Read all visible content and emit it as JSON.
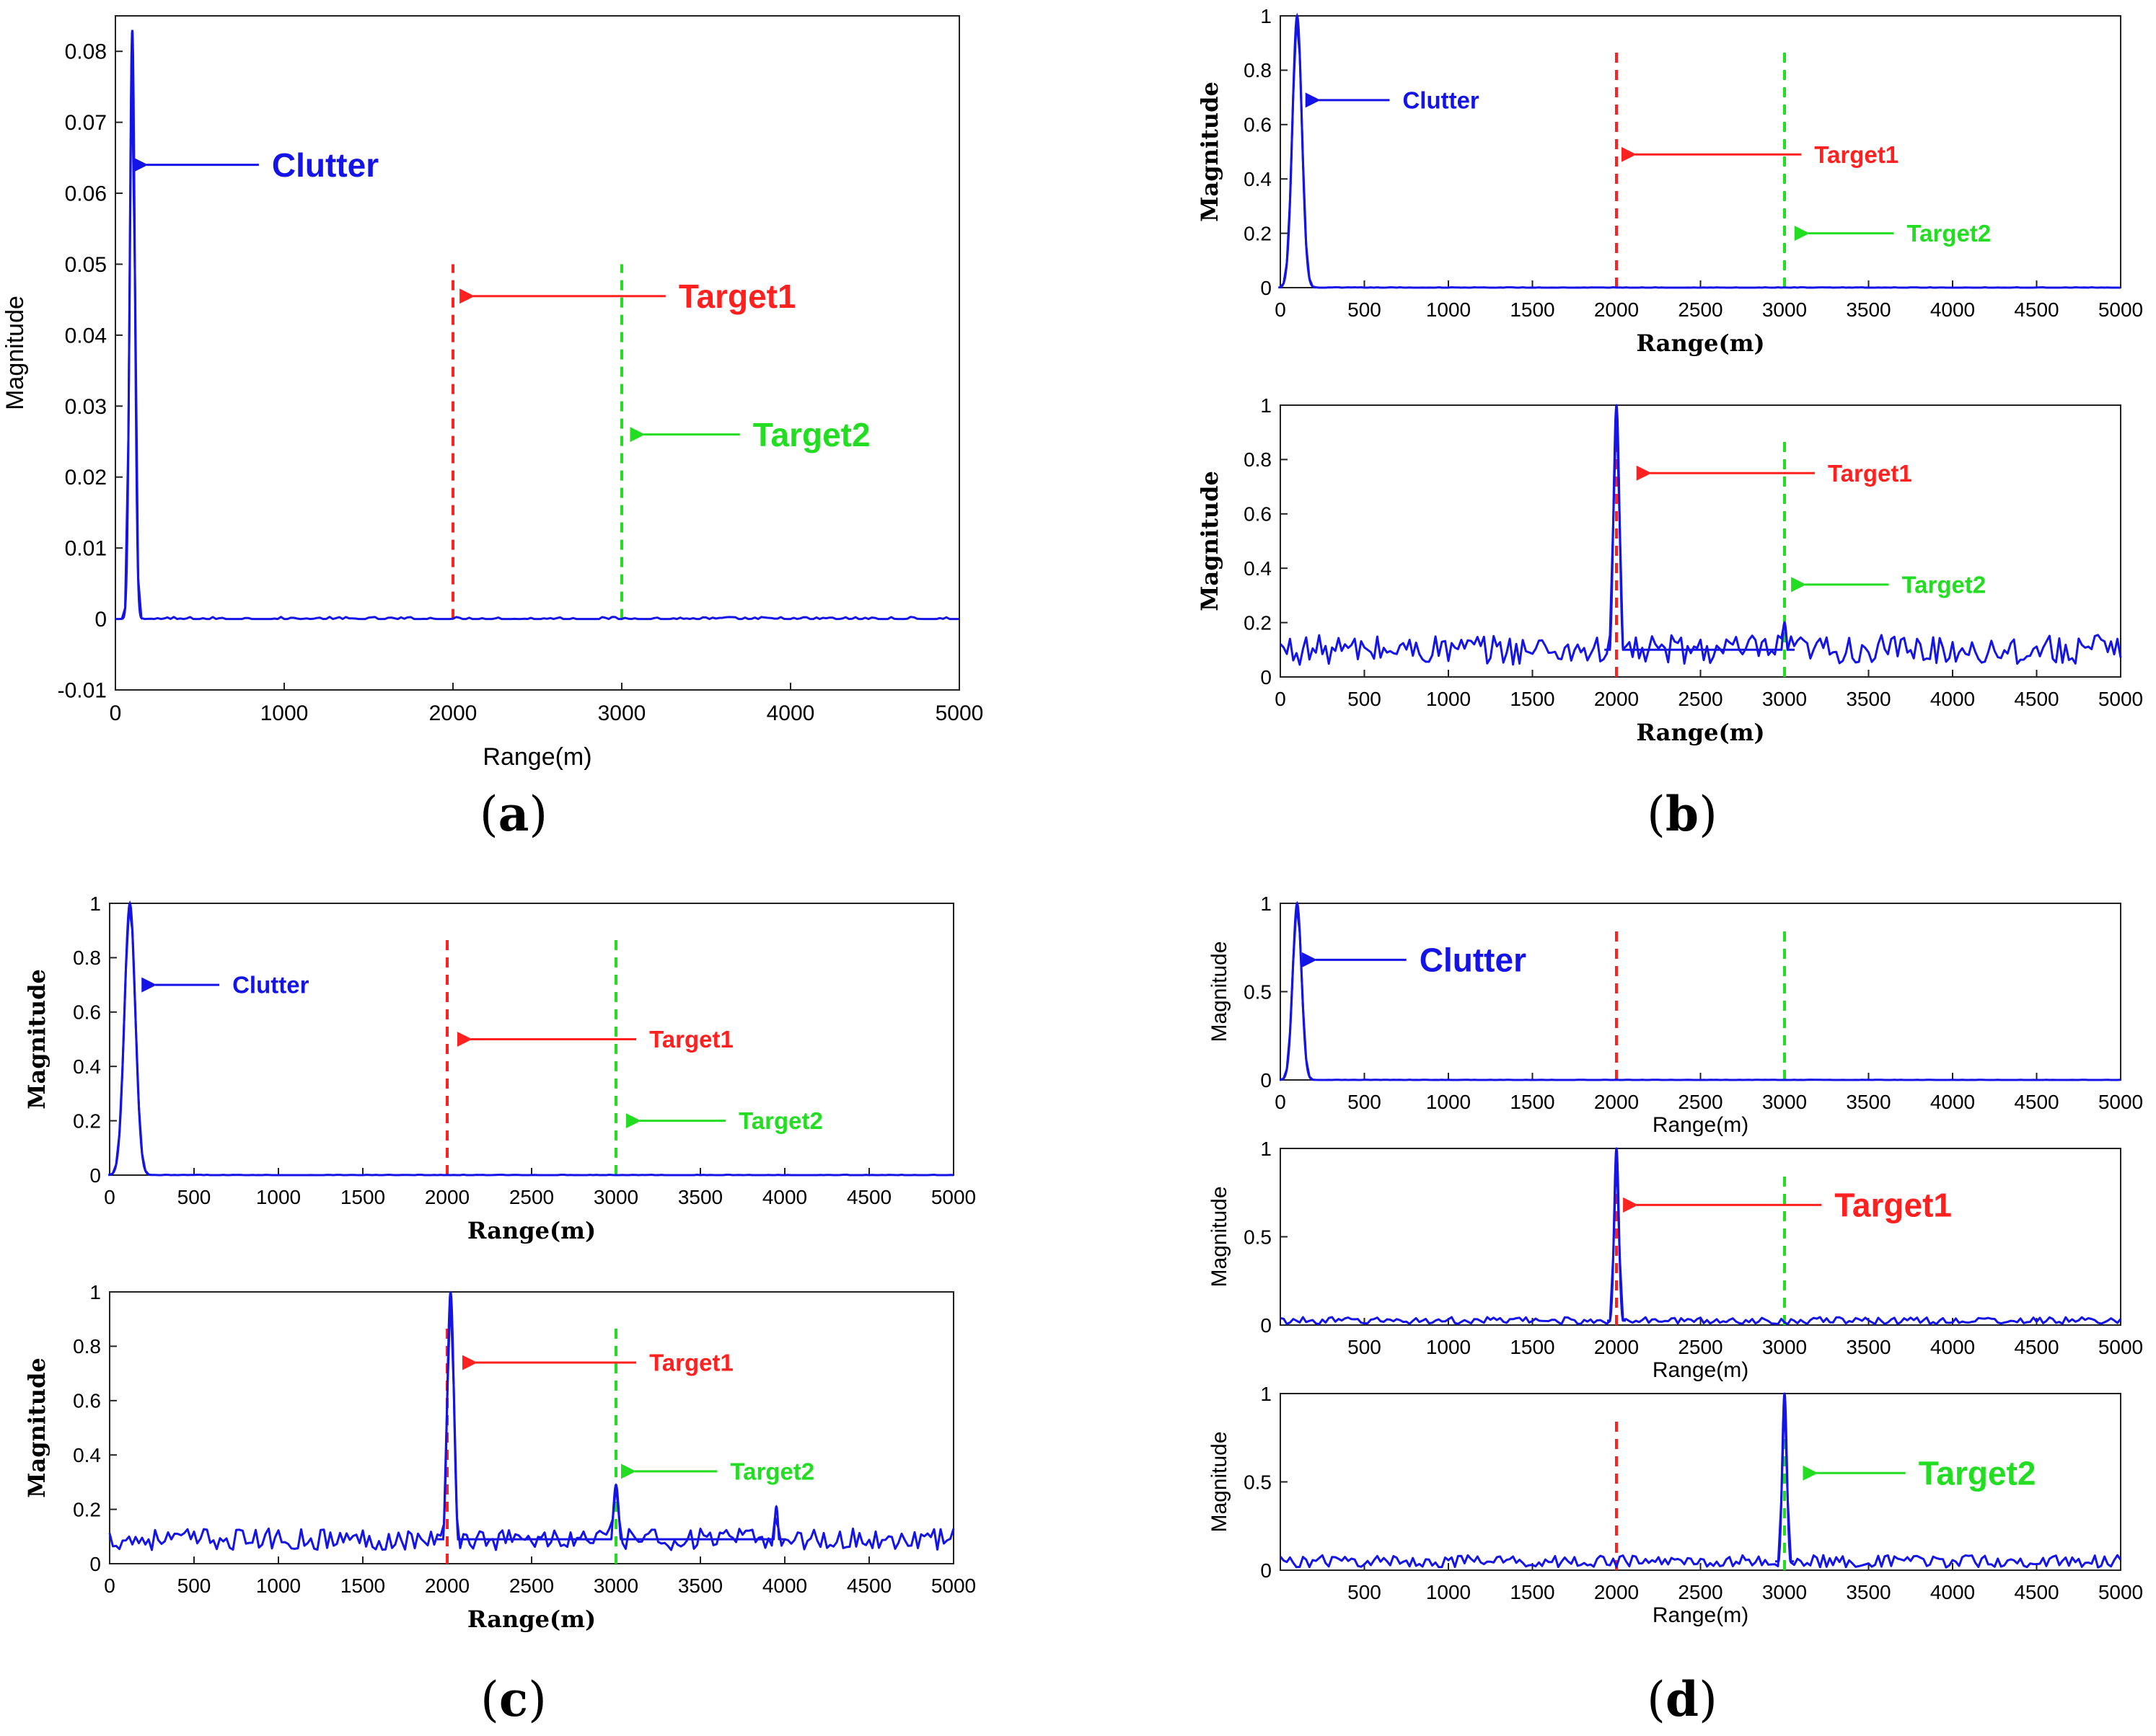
{
  "colors": {
    "signal": "#1414e6",
    "target1": "#ff2020",
    "target2": "#22dd22",
    "axis": "#222222"
  },
  "panel_labels": [
    "a",
    "b",
    "c",
    "d"
  ],
  "chart_data": [
    {
      "id": "a1",
      "panel": "a",
      "type": "line",
      "xlabel": "Range(m)",
      "ylabel": "Magnitude",
      "xlim": [
        0,
        5000
      ],
      "ylim": [
        -0.01,
        0.085
      ],
      "xticks": [
        0,
        1000,
        2000,
        3000,
        4000,
        5000
      ],
      "yticks": [
        -0.01,
        0,
        0.01,
        0.02,
        0.03,
        0.04,
        0.05,
        0.06,
        0.07,
        0.08
      ],
      "ytick_labels": [
        "-0.01",
        "0",
        "0.01",
        "0.02",
        "0.03",
        "0.04",
        "0.05",
        "0.06",
        "0.07",
        "0.08"
      ],
      "series": [
        {
          "name": "Clutter response",
          "peaks": [
            {
              "x": 100,
              "h": 0.083,
              "w": 15
            }
          ],
          "noise": 0.0006,
          "zero_below": 60
        }
      ],
      "vlines": [
        {
          "x": 2000,
          "y_top": 0.05,
          "color": "target1"
        },
        {
          "x": 3000,
          "y_top": 0.05,
          "color": "target2"
        }
      ],
      "annotations": [
        {
          "text": "Clutter",
          "color": "signal",
          "x": 125,
          "y": 0.064,
          "x_tail": 850
        },
        {
          "text": "Target1",
          "color": "target1",
          "x": 2060,
          "y": 0.0455,
          "x_tail": 3260
        },
        {
          "text": "Target2",
          "color": "target2",
          "x": 3070,
          "y": 0.026,
          "x_tail": 3700
        }
      ]
    },
    {
      "id": "b1",
      "panel": "b",
      "type": "line",
      "xlabel": "Range(m)",
      "ylabel": "Magnitude",
      "xlim": [
        0,
        5000
      ],
      "ylim": [
        0,
        1
      ],
      "xticks": [
        0,
        500,
        1000,
        1500,
        2000,
        2500,
        3000,
        3500,
        4000,
        4500,
        5000
      ],
      "yticks": [
        0,
        0.2,
        0.4,
        0.6,
        0.8,
        1
      ],
      "ytick_labels": [
        "0",
        "0.2",
        "0.4",
        "0.6",
        "0.8",
        "1"
      ],
      "series": [
        {
          "name": "Clutter response",
          "peaks": [
            {
              "x": 100,
              "h": 1.0,
              "w": 28
            }
          ],
          "noise": 0.003,
          "zero_below": 40
        }
      ],
      "vlines": [
        {
          "x": 2000,
          "y_top": 0.88,
          "color": "target1"
        },
        {
          "x": 3000,
          "y_top": 0.88,
          "color": "target2"
        }
      ],
      "annotations": [
        {
          "text": "Clutter",
          "color": "signal",
          "x": 170,
          "y": 0.69,
          "x_tail": 650
        },
        {
          "text": "Target1",
          "color": "target1",
          "x": 2050,
          "y": 0.49,
          "x_tail": 3100
        },
        {
          "text": "Target2",
          "color": "target2",
          "x": 3080,
          "y": 0.2,
          "x_tail": 3650
        }
      ]
    },
    {
      "id": "b2",
      "panel": "b",
      "type": "line",
      "xlabel": "Range(m)",
      "ylabel": "Magnitude",
      "xlim": [
        0,
        5000
      ],
      "ylim": [
        0,
        1
      ],
      "xticks": [
        0,
        500,
        1000,
        1500,
        2000,
        2500,
        3000,
        3500,
        4000,
        4500,
        5000
      ],
      "yticks": [
        0,
        0.2,
        0.4,
        0.6,
        0.8,
        1
      ],
      "ytick_labels": [
        "0",
        "0.2",
        "0.4",
        "0.6",
        "0.8",
        "1"
      ],
      "series": [
        {
          "name": "Target1 response",
          "peaks": [
            {
              "x": 2000,
              "h": 1.0,
              "w": 18
            },
            {
              "x": 3000,
              "h": 0.2,
              "w": 15
            }
          ],
          "noise": 0.1,
          "noise_amp": 0.055
        }
      ],
      "vlines": [
        {
          "x": 2000,
          "y_top": 0.88,
          "color": "target1"
        },
        {
          "x": 3000,
          "y_top": 0.88,
          "color": "target2"
        }
      ],
      "annotations": [
        {
          "text": "Target1",
          "color": "target1",
          "x": 2140,
          "y": 0.75,
          "x_tail": 3180
        },
        {
          "text": "Target2",
          "color": "target2",
          "x": 3060,
          "y": 0.34,
          "x_tail": 3620
        }
      ]
    },
    {
      "id": "c1",
      "panel": "c",
      "type": "line",
      "xlabel": "Range(m)",
      "ylabel": "Magnitude",
      "xlim": [
        0,
        5000
      ],
      "ylim": [
        0,
        1
      ],
      "xticks": [
        0,
        500,
        1000,
        1500,
        2000,
        2500,
        3000,
        3500,
        4000,
        4500,
        5000
      ],
      "yticks": [
        0,
        0.2,
        0.4,
        0.6,
        0.8,
        1
      ],
      "ytick_labels": [
        "0",
        "0.2",
        "0.4",
        "0.6",
        "0.8",
        "1"
      ],
      "series": [
        {
          "name": "Clutter response",
          "peaks": [
            {
              "x": 120,
              "h": 1.0,
              "w": 32
            }
          ],
          "noise": 0.003,
          "zero_below": 50
        }
      ],
      "vlines": [
        {
          "x": 2000,
          "y_top": 0.88,
          "color": "target1"
        },
        {
          "x": 3000,
          "y_top": 0.88,
          "color": "target2"
        }
      ],
      "annotations": [
        {
          "text": "Clutter",
          "color": "signal",
          "x": 210,
          "y": 0.7,
          "x_tail": 650
        },
        {
          "text": "Target1",
          "color": "target1",
          "x": 2080,
          "y": 0.5,
          "x_tail": 3120
        },
        {
          "text": "Target2",
          "color": "target2",
          "x": 3080,
          "y": 0.2,
          "x_tail": 3650
        }
      ]
    },
    {
      "id": "c2",
      "panel": "c",
      "type": "line",
      "xlabel": "Range(m)",
      "ylabel": "Magnitude",
      "xlim": [
        0,
        5000
      ],
      "ylim": [
        0,
        1
      ],
      "xticks": [
        0,
        500,
        1000,
        1500,
        2000,
        2500,
        3000,
        3500,
        4000,
        4500,
        5000
      ],
      "yticks": [
        0,
        0.2,
        0.4,
        0.6,
        0.8,
        1
      ],
      "ytick_labels": [
        "0",
        "0.2",
        "0.4",
        "0.6",
        "0.8",
        "1"
      ],
      "series": [
        {
          "name": "Target1 response",
          "peaks": [
            {
              "x": 2020,
              "h": 1.0,
              "w": 20
            },
            {
              "x": 3000,
              "h": 0.29,
              "w": 18
            },
            {
              "x": 3950,
              "h": 0.21,
              "w": 12
            }
          ],
          "noise": 0.09,
          "noise_amp": 0.04
        }
      ],
      "vlines": [
        {
          "x": 2000,
          "y_top": 0.88,
          "color": "target1"
        },
        {
          "x": 3000,
          "y_top": 0.88,
          "color": "target2"
        }
      ],
      "annotations": [
        {
          "text": "Target1",
          "color": "target1",
          "x": 2110,
          "y": 0.74,
          "x_tail": 3120
        },
        {
          "text": "Target2",
          "color": "target2",
          "x": 3050,
          "y": 0.34,
          "x_tail": 3600
        }
      ]
    },
    {
      "id": "d1",
      "panel": "d",
      "type": "line",
      "xlabel": "Range(m)",
      "ylabel": "Magnitude",
      "xlim": [
        0,
        5000
      ],
      "ylim": [
        0,
        1
      ],
      "xticks": [
        0,
        500,
        1000,
        1500,
        2000,
        2500,
        3000,
        3500,
        4000,
        4500,
        5000
      ],
      "yticks": [
        0,
        0.5,
        1
      ],
      "ytick_labels": [
        "0",
        "0.5",
        "1"
      ],
      "series": [
        {
          "name": "Clutter response",
          "peaks": [
            {
              "x": 100,
              "h": 1.0,
              "w": 26
            }
          ],
          "noise": 0.003,
          "zero_below": 40
        }
      ],
      "vlines": [
        {
          "x": 2000,
          "y_top": 0.88,
          "color": "target1"
        },
        {
          "x": 3000,
          "y_top": 0.88,
          "color": "target2"
        }
      ],
      "annotations": [
        {
          "text": "Clutter",
          "color": "signal",
          "x": 150,
          "y": 0.68,
          "x_tail": 750
        }
      ]
    },
    {
      "id": "d2",
      "panel": "d",
      "type": "line",
      "xlabel": "Range(m)",
      "ylabel": "Magnitude",
      "xlim": [
        0,
        5000
      ],
      "ylim": [
        0,
        1
      ],
      "xticks": [
        500,
        1000,
        1500,
        2000,
        2500,
        3000,
        3500,
        4000,
        4500,
        5000
      ],
      "yticks": [
        0,
        0.5,
        1
      ],
      "ytick_labels": [
        "0",
        "0.5",
        "1"
      ],
      "series": [
        {
          "name": "Target1 response",
          "peaks": [
            {
              "x": 2000,
              "h": 1.0,
              "w": 14
            }
          ],
          "noise": 0.025,
          "noise_amp": 0.02
        }
      ],
      "vlines": [
        {
          "x": 2000,
          "y_top": 0.88,
          "color": "target1"
        },
        {
          "x": 3000,
          "y_top": 0.88,
          "color": "target2"
        }
      ],
      "annotations": [
        {
          "text": "Target1",
          "color": "target1",
          "x": 2060,
          "y": 0.68,
          "x_tail": 3220
        }
      ]
    },
    {
      "id": "d3",
      "panel": "d",
      "type": "line",
      "xlabel": "Range(m)",
      "ylabel": "Magnitude",
      "xlim": [
        0,
        5000
      ],
      "ylim": [
        0,
        1
      ],
      "xticks": [
        500,
        1000,
        1500,
        2000,
        2500,
        3000,
        3500,
        4000,
        4500,
        5000
      ],
      "yticks": [
        0,
        0.5,
        1
      ],
      "ytick_labels": [
        "0",
        "0.5",
        "1"
      ],
      "series": [
        {
          "name": "Target2 response",
          "peaks": [
            {
              "x": 3000,
              "h": 1.0,
              "w": 14
            }
          ],
          "noise": 0.05,
          "noise_amp": 0.035
        }
      ],
      "vlines": [
        {
          "x": 2000,
          "y_top": 0.88,
          "color": "target1"
        },
        {
          "x": 3000,
          "y_top": 0.88,
          "color": "target2"
        }
      ],
      "annotations": [
        {
          "text": "Target2",
          "color": "target2",
          "x": 3130,
          "y": 0.55,
          "x_tail": 3720
        }
      ]
    }
  ]
}
